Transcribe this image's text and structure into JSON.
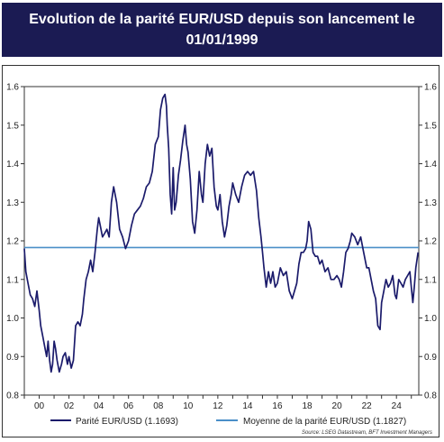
{
  "header": {
    "title_line1": "Evolution de la parité EUR/USD depuis son lancement le",
    "title_line2": "01/01/1999"
  },
  "footer": {
    "source": "Source: LSEG Datastream, BFT Investment Managers"
  },
  "colors": {
    "title_background": "#1b1b53",
    "parity_line": "#1b1b6b",
    "average_line": "#4a8fc8"
  },
  "chart_data": {
    "type": "line",
    "xlabel": "",
    "ylabel": "",
    "x_ticks": [
      {
        "year": 2000,
        "label": "00"
      },
      {
        "year": 2002,
        "label": "02"
      },
      {
        "year": 2004,
        "label": "04"
      },
      {
        "year": 2006,
        "label": "06"
      },
      {
        "year": 2008,
        "label": "08"
      },
      {
        "year": 2010,
        "label": "10"
      },
      {
        "year": 2012,
        "label": "12"
      },
      {
        "year": 2014,
        "label": "14"
      },
      {
        "year": 2016,
        "label": "16"
      },
      {
        "year": 2018,
        "label": "18"
      },
      {
        "year": 2020,
        "label": "20"
      },
      {
        "year": 2022,
        "label": "22"
      },
      {
        "year": 2024,
        "label": "24"
      }
    ],
    "xlim": [
      1999.0,
      2025.5
    ],
    "y_ticks": [
      "0.8",
      "0.9",
      "1.0",
      "1.1",
      "1.2",
      "1.3",
      "1.4",
      "1.5",
      "1.6"
    ],
    "ylim": [
      0.8,
      1.6
    ],
    "grid": false,
    "legend_position": "bottom",
    "series": [
      {
        "name": "Parité EUR/USD (1.1693)",
        "color": "#1b1b6b",
        "x": [
          1999.0,
          1999.1,
          1999.25,
          1999.4,
          1999.55,
          1999.7,
          1999.85,
          2000.0,
          2000.1,
          2000.25,
          2000.4,
          2000.5,
          2000.6,
          2000.7,
          2000.8,
          2000.9,
          2001.0,
          2001.1,
          2001.2,
          2001.35,
          2001.5,
          2001.6,
          2001.75,
          2001.9,
          2002.0,
          2002.15,
          2002.3,
          2002.45,
          2002.6,
          2002.75,
          2002.9,
          2003.0,
          2003.15,
          2003.3,
          2003.45,
          2003.6,
          2003.75,
          2003.9,
          2004.0,
          2004.1,
          2004.25,
          2004.4,
          2004.55,
          2004.7,
          2004.85,
          2005.0,
          2005.2,
          2005.4,
          2005.6,
          2005.8,
          2006.0,
          2006.2,
          2006.4,
          2006.6,
          2006.8,
          2007.0,
          2007.2,
          2007.4,
          2007.6,
          2007.8,
          2008.0,
          2008.15,
          2008.3,
          2008.45,
          2008.55,
          2008.6,
          2008.7,
          2008.8,
          2008.9,
          2009.0,
          2009.1,
          2009.2,
          2009.35,
          2009.5,
          2009.65,
          2009.8,
          2009.9,
          2010.0,
          2010.15,
          2010.3,
          2010.45,
          2010.6,
          2010.75,
          2010.9,
          2011.0,
          2011.15,
          2011.3,
          2011.45,
          2011.6,
          2011.75,
          2011.9,
          2012.0,
          2012.15,
          2012.3,
          2012.45,
          2012.6,
          2012.75,
          2012.9,
          2013.0,
          2013.2,
          2013.4,
          2013.6,
          2013.8,
          2014.0,
          2014.2,
          2014.4,
          2014.6,
          2014.75,
          2014.9,
          2015.0,
          2015.1,
          2015.25,
          2015.4,
          2015.55,
          2015.7,
          2015.85,
          2016.0,
          2016.2,
          2016.4,
          2016.6,
          2016.8,
          2017.0,
          2017.15,
          2017.3,
          2017.45,
          2017.6,
          2017.75,
          2017.9,
          2018.0,
          2018.1,
          2018.25,
          2018.4,
          2018.55,
          2018.7,
          2018.85,
          2019.0,
          2019.2,
          2019.4,
          2019.6,
          2019.8,
          2020.0,
          2020.15,
          2020.3,
          2020.45,
          2020.6,
          2020.75,
          2020.9,
          2021.0,
          2021.2,
          2021.4,
          2021.6,
          2021.8,
          2022.0,
          2022.15,
          2022.3,
          2022.45,
          2022.6,
          2022.75,
          2022.9,
          2023.0,
          2023.15,
          2023.3,
          2023.45,
          2023.6,
          2023.75,
          2023.9,
          2024.0,
          2024.15,
          2024.3,
          2024.45,
          2024.6,
          2024.75,
          2024.9,
          2025.0,
          2025.1,
          2025.2,
          2025.3,
          2025.45
        ],
        "y": [
          1.18,
          1.12,
          1.09,
          1.06,
          1.05,
          1.03,
          1.07,
          1.02,
          0.98,
          0.95,
          0.92,
          0.9,
          0.94,
          0.89,
          0.86,
          0.88,
          0.94,
          0.92,
          0.89,
          0.86,
          0.88,
          0.9,
          0.91,
          0.88,
          0.9,
          0.87,
          0.89,
          0.98,
          0.99,
          0.98,
          1.01,
          1.05,
          1.1,
          1.12,
          1.15,
          1.12,
          1.17,
          1.23,
          1.26,
          1.24,
          1.21,
          1.22,
          1.23,
          1.21,
          1.3,
          1.34,
          1.3,
          1.23,
          1.21,
          1.18,
          1.2,
          1.24,
          1.27,
          1.28,
          1.29,
          1.31,
          1.34,
          1.35,
          1.38,
          1.45,
          1.47,
          1.54,
          1.57,
          1.58,
          1.55,
          1.5,
          1.44,
          1.32,
          1.27,
          1.39,
          1.28,
          1.3,
          1.37,
          1.41,
          1.46,
          1.5,
          1.45,
          1.43,
          1.36,
          1.25,
          1.22,
          1.28,
          1.38,
          1.32,
          1.3,
          1.4,
          1.45,
          1.42,
          1.44,
          1.34,
          1.29,
          1.28,
          1.32,
          1.25,
          1.21,
          1.24,
          1.29,
          1.32,
          1.35,
          1.32,
          1.3,
          1.34,
          1.37,
          1.38,
          1.37,
          1.38,
          1.33,
          1.26,
          1.21,
          1.17,
          1.13,
          1.08,
          1.12,
          1.09,
          1.12,
          1.08,
          1.09,
          1.13,
          1.11,
          1.12,
          1.07,
          1.05,
          1.07,
          1.09,
          1.14,
          1.17,
          1.17,
          1.18,
          1.2,
          1.25,
          1.23,
          1.17,
          1.16,
          1.16,
          1.14,
          1.15,
          1.12,
          1.13,
          1.1,
          1.1,
          1.11,
          1.1,
          1.08,
          1.12,
          1.17,
          1.18,
          1.2,
          1.22,
          1.21,
          1.19,
          1.21,
          1.17,
          1.13,
          1.13,
          1.1,
          1.07,
          1.05,
          0.98,
          0.97,
          1.04,
          1.07,
          1.1,
          1.08,
          1.09,
          1.11,
          1.06,
          1.05,
          1.1,
          1.09,
          1.08,
          1.1,
          1.11,
          1.12,
          1.08,
          1.04,
          1.08,
          1.13,
          1.17
        ]
      },
      {
        "name": "Moyenne de la parité EUR/USD (1.1827)",
        "color": "#4a8fc8",
        "x": [
          1999.0,
          2025.5
        ],
        "y": [
          1.1827,
          1.1827
        ]
      }
    ]
  }
}
